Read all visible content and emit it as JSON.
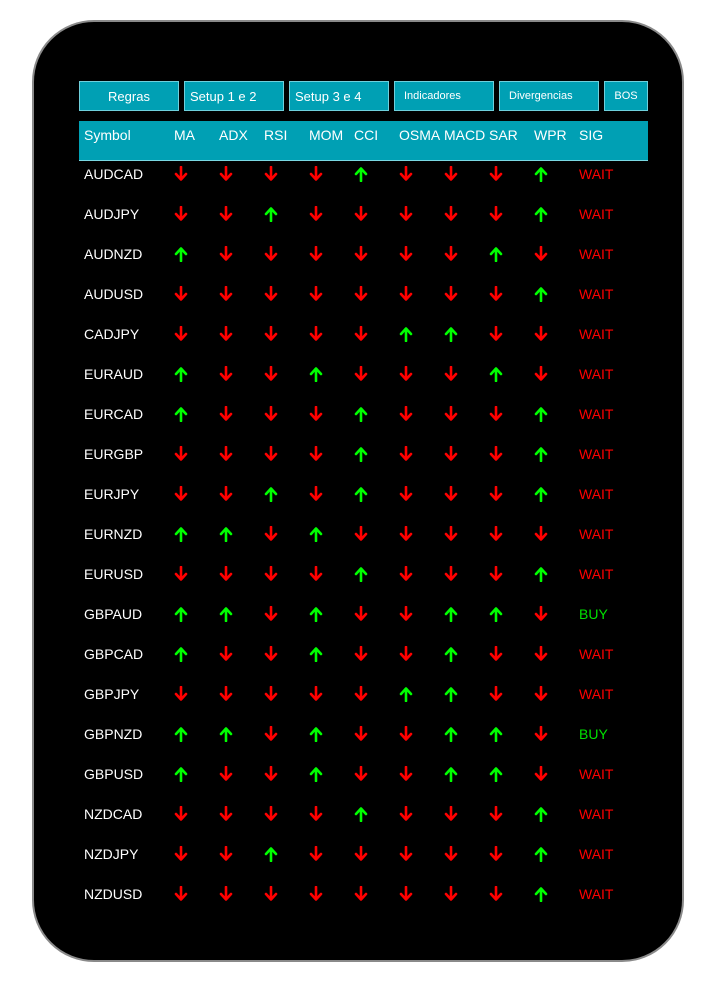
{
  "colors": {
    "accent": "#00a0b4",
    "up": "#00ff00",
    "down": "#ff0000",
    "buy": "#00e000",
    "wait": "#ff0000"
  },
  "tabs": [
    "Regras",
    "Setup 1 e 2",
    "Setup 3 e 4",
    "Indicadores",
    "Divergencias",
    "BOS"
  ],
  "columns": [
    "Symbol",
    "MA",
    "ADX",
    "RSI",
    "MOM",
    "CCI",
    "OSMA",
    "MACD",
    "SAR",
    "WPR",
    "SIG"
  ],
  "rows": [
    {
      "symbol": "AUDCAD",
      "arrows": [
        "down",
        "down",
        "down",
        "down",
        "up",
        "down",
        "down",
        "down",
        "up"
      ],
      "signal": "WAIT"
    },
    {
      "symbol": "AUDJPY",
      "arrows": [
        "down",
        "down",
        "up",
        "down",
        "down",
        "down",
        "down",
        "down",
        "up"
      ],
      "signal": "WAIT"
    },
    {
      "symbol": "AUDNZD",
      "arrows": [
        "up",
        "down",
        "down",
        "down",
        "down",
        "down",
        "down",
        "up",
        "down"
      ],
      "signal": "WAIT"
    },
    {
      "symbol": "AUDUSD",
      "arrows": [
        "down",
        "down",
        "down",
        "down",
        "down",
        "down",
        "down",
        "down",
        "up"
      ],
      "signal": "WAIT"
    },
    {
      "symbol": "CADJPY",
      "arrows": [
        "down",
        "down",
        "down",
        "down",
        "down",
        "up",
        "up",
        "down",
        "down"
      ],
      "signal": "WAIT"
    },
    {
      "symbol": "EURAUD",
      "arrows": [
        "up",
        "down",
        "down",
        "up",
        "down",
        "down",
        "down",
        "up",
        "down"
      ],
      "signal": "WAIT"
    },
    {
      "symbol": "EURCAD",
      "arrows": [
        "up",
        "down",
        "down",
        "down",
        "up",
        "down",
        "down",
        "down",
        "up"
      ],
      "signal": "WAIT"
    },
    {
      "symbol": "EURGBP",
      "arrows": [
        "down",
        "down",
        "down",
        "down",
        "up",
        "down",
        "down",
        "down",
        "up"
      ],
      "signal": "WAIT"
    },
    {
      "symbol": "EURJPY",
      "arrows": [
        "down",
        "down",
        "up",
        "down",
        "up",
        "down",
        "down",
        "down",
        "up"
      ],
      "signal": "WAIT"
    },
    {
      "symbol": "EURNZD",
      "arrows": [
        "up",
        "up",
        "down",
        "up",
        "down",
        "down",
        "down",
        "down",
        "down"
      ],
      "signal": "WAIT"
    },
    {
      "symbol": "EURUSD",
      "arrows": [
        "down",
        "down",
        "down",
        "down",
        "up",
        "down",
        "down",
        "down",
        "up"
      ],
      "signal": "WAIT"
    },
    {
      "symbol": "GBPAUD",
      "arrows": [
        "up",
        "up",
        "down",
        "up",
        "down",
        "down",
        "up",
        "up",
        "down"
      ],
      "signal": "BUY"
    },
    {
      "symbol": "GBPCAD",
      "arrows": [
        "up",
        "down",
        "down",
        "up",
        "down",
        "down",
        "up",
        "down",
        "down"
      ],
      "signal": "WAIT"
    },
    {
      "symbol": "GBPJPY",
      "arrows": [
        "down",
        "down",
        "down",
        "down",
        "down",
        "up",
        "up",
        "down",
        "down"
      ],
      "signal": "WAIT"
    },
    {
      "symbol": "GBPNZD",
      "arrows": [
        "up",
        "up",
        "down",
        "up",
        "down",
        "down",
        "up",
        "up",
        "down"
      ],
      "signal": "BUY"
    },
    {
      "symbol": "GBPUSD",
      "arrows": [
        "up",
        "down",
        "down",
        "up",
        "down",
        "down",
        "up",
        "up",
        "down"
      ],
      "signal": "WAIT"
    },
    {
      "symbol": "NZDCAD",
      "arrows": [
        "down",
        "down",
        "down",
        "down",
        "up",
        "down",
        "down",
        "down",
        "up"
      ],
      "signal": "WAIT"
    },
    {
      "symbol": "NZDJPY",
      "arrows": [
        "down",
        "down",
        "up",
        "down",
        "down",
        "down",
        "down",
        "down",
        "up"
      ],
      "signal": "WAIT"
    },
    {
      "symbol": "NZDUSD",
      "arrows": [
        "down",
        "down",
        "down",
        "down",
        "down",
        "down",
        "down",
        "down",
        "up"
      ],
      "signal": "WAIT"
    }
  ]
}
